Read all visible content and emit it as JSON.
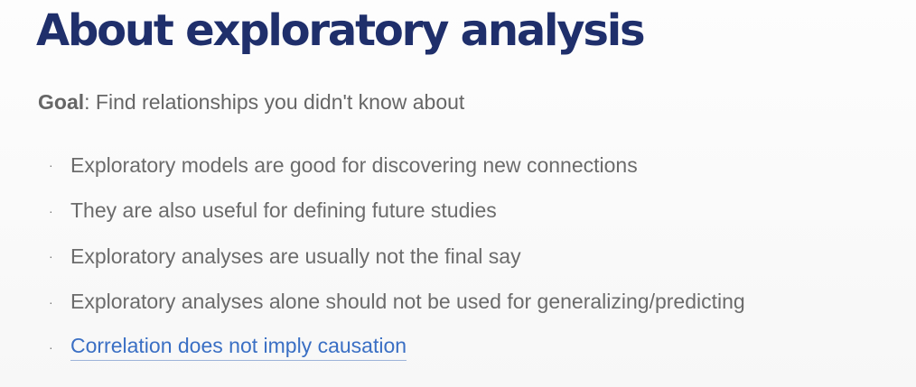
{
  "slide": {
    "title": "About exploratory analysis",
    "goal_label": "Goal",
    "goal_text": ": Find relationships you didn't know about",
    "bullet_symbol": "·",
    "bullets": [
      "Exploratory models are good for discovering new connections",
      "They are also useful for defining future studies",
      "Exploratory analyses are usually not the final say",
      "Exploratory analyses alone should not be used for generalizing/predicting"
    ],
    "link_bullet": "Correlation does not imply causation"
  },
  "colors": {
    "title": "#1f2f6b",
    "body_text": "#6b6b6b",
    "link": "#3a6fc4"
  }
}
